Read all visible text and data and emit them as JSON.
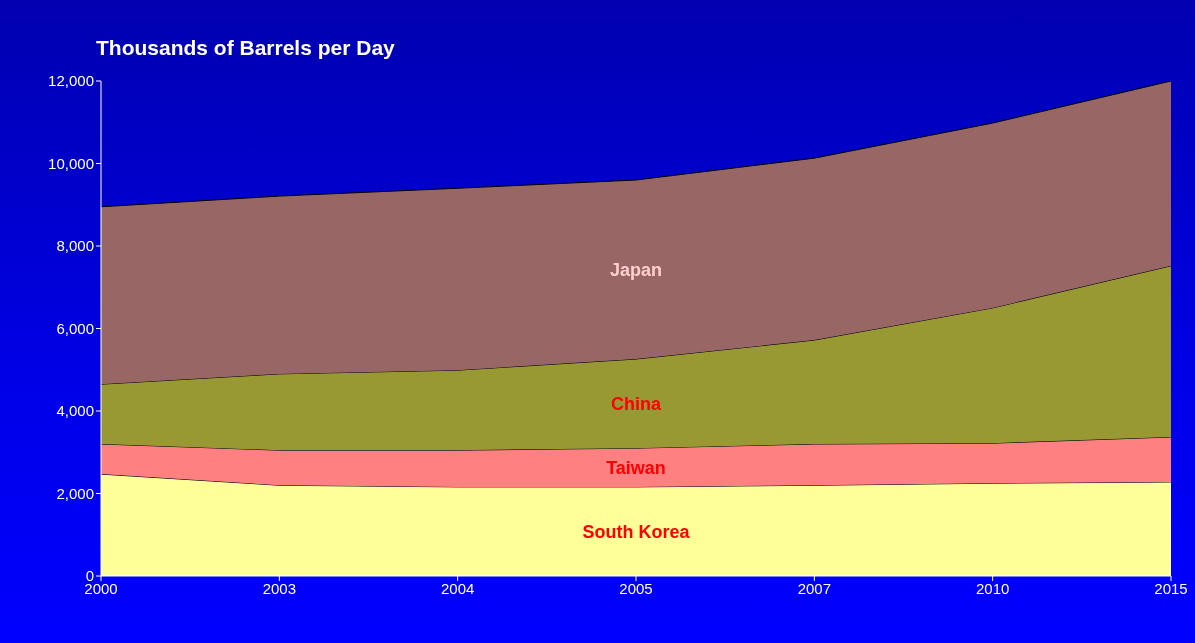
{
  "chart_data": {
    "type": "area",
    "stacked": true,
    "title": "Thousands of Barrels per Day",
    "categories": [
      "2000",
      "2003",
      "2004",
      "2005",
      "2007",
      "2010",
      "2015"
    ],
    "series": [
      {
        "name": "South Korea",
        "color": "#ffff99",
        "values": [
          2470,
          2200,
          2160,
          2160,
          2200,
          2250,
          2280
        ]
      },
      {
        "name": "Taiwan",
        "color": "#ff8080",
        "values": [
          730,
          850,
          890,
          940,
          1000,
          970,
          1090
        ]
      },
      {
        "name": "China",
        "color": "#999933",
        "values": [
          1450,
          1850,
          1940,
          2160,
          2520,
          3280,
          4150
        ]
      },
      {
        "name": "Japan",
        "color": "#996666",
        "values": [
          4300,
          4310,
          4410,
          4340,
          4410,
          4480,
          4480
        ]
      }
    ],
    "ylim": [
      0,
      12000
    ],
    "yticks": [
      0,
      {
        "value": 2000,
        "label": "2,000"
      },
      {
        "value": 4000,
        "label": "4,000"
      },
      {
        "value": 6000,
        "label": "6,000"
      },
      {
        "value": 8000,
        "label": "8,000"
      },
      {
        "value": 10000,
        "label": "10,000"
      },
      {
        "value": 12000,
        "label": "12,000"
      }
    ],
    "grid": false,
    "legend": false
  }
}
